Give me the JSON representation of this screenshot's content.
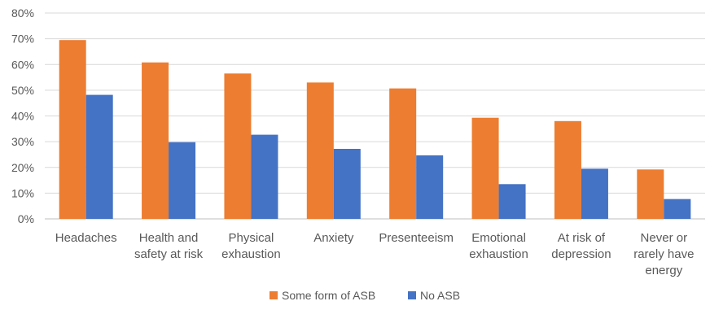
{
  "chart_data": {
    "type": "bar",
    "title": "",
    "xlabel": "",
    "ylabel": "",
    "ylim": [
      0,
      80
    ],
    "yticks": [
      "0%",
      "10%",
      "20%",
      "30%",
      "40%",
      "50%",
      "60%",
      "70%",
      "80%"
    ],
    "grid": true,
    "legend_position": "bottom",
    "categories": [
      [
        "Headaches"
      ],
      [
        "Health and",
        "safety at risk"
      ],
      [
        "Physical",
        "exhaustion"
      ],
      [
        "Anxiety"
      ],
      [
        "Presenteeism"
      ],
      [
        "Emotional",
        "exhaustion"
      ],
      [
        "At risk of",
        "depression"
      ],
      [
        "Never or",
        "rarely have",
        "energy"
      ]
    ],
    "series": [
      {
        "name": "Some form of ASB",
        "color": "#ED7D31",
        "values": [
          69.5,
          60.8,
          56.5,
          53.0,
          50.7,
          39.3,
          38.0,
          19.2
        ]
      },
      {
        "name": "No ASB",
        "color": "#4472C4",
        "values": [
          48.2,
          29.8,
          32.7,
          27.2,
          24.7,
          13.5,
          19.5,
          7.7
        ]
      }
    ]
  }
}
